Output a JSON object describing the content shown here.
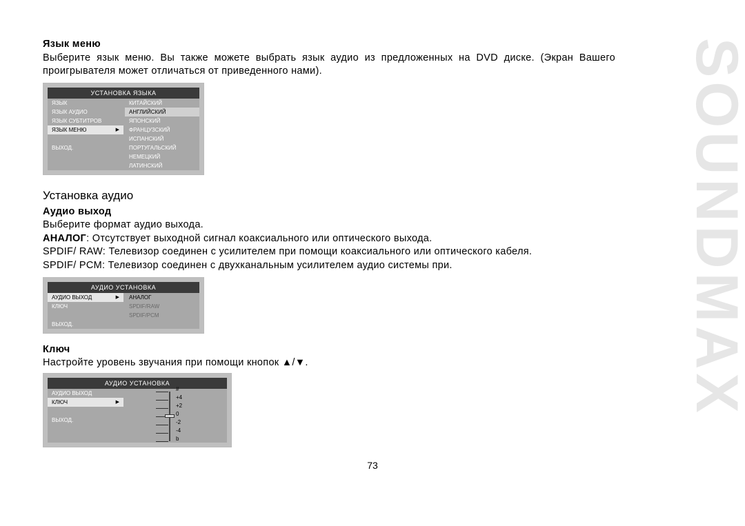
{
  "page_number": "73",
  "watermark": "SOUNDMAX",
  "section_lang": {
    "heading": "Язык меню",
    "para": "Выберите язык меню. Вы также можете выбрать язык аудио из предложенных на DVD диске. (Экран Вашего проигрывателя может отличаться от приведенного нами)."
  },
  "osd_lang": {
    "title": "УСТАНОВКА ЯЗЫКА",
    "left": [
      "ЯЗЫК",
      "ЯЗЫК АУДИО",
      "ЯЗЫК СУБТИТРОВ",
      "ЯЗЫК МЕНЮ",
      "",
      "ВЫХОД."
    ],
    "selected_left_index": 3,
    "right": [
      "КИТАЙСКИЙ",
      "АНГЛИЙСКИЙ",
      "ЯПОНСКИЙ",
      "ФРАНЦУЗСКИЙ",
      "ИСПАНСКИЙ",
      "ПОРТУГАЛЬСКИЙ",
      "НЕМЕЦКИЙ",
      "ЛАТИНСКИЙ"
    ],
    "selected_right_index": 1
  },
  "section_audio_title": "Установка аудио",
  "section_audio_out": {
    "heading": "Аудио выход",
    "line1": "Выберите формат аудио выхода.",
    "line2a": "АНАЛОГ",
    "line2b": ": Отсутствует выходной сигнал коаксиального или оптического выхода.",
    "line3": "SPDIF/ RAW: Телевизор соединен с усилителем при помощи коаксиального или оптического кабеля.",
    "line4": "SPDIF/ PCM: Телевизор соединен с двухканальным усилителем аудио системы при."
  },
  "osd_audio_out": {
    "title": "АУДИО УСТАНОВКА",
    "left": [
      "АУДИО ВЫХОД",
      "КЛЮЧ",
      "",
      "ВЫХОД."
    ],
    "selected_left_index": 0,
    "right": [
      "АНАЛОГ",
      "SPDIF/RAW",
      "SPDIF/PCM"
    ],
    "selected_right_index": 0
  },
  "section_key": {
    "heading": "Ключ",
    "para": "Настройте уровень звучания при помощи кнопок ▲/▼."
  },
  "osd_key": {
    "title": "АУДИО УСТАНОВКА",
    "left": [
      "АУДИО ВЫХОД",
      "КЛЮЧ",
      "",
      "ВЫХОД."
    ],
    "selected_left_index": 1,
    "slider": {
      "top_symbol": "#",
      "values": [
        "+4",
        "+2",
        "0",
        "-2",
        "-4"
      ],
      "bottom_symbol": "b",
      "knob_at": 2
    }
  }
}
